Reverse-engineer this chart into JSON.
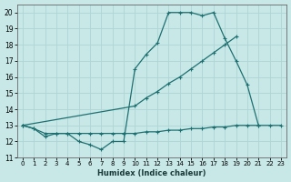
{
  "xlabel": "Humidex (Indice chaleur)",
  "xlim": [
    -0.5,
    23.5
  ],
  "ylim": [
    11,
    20.5
  ],
  "yticks": [
    11,
    12,
    13,
    14,
    15,
    16,
    17,
    18,
    19,
    20
  ],
  "xticks": [
    0,
    1,
    2,
    3,
    4,
    5,
    6,
    7,
    8,
    9,
    10,
    11,
    12,
    13,
    14,
    15,
    16,
    17,
    18,
    19,
    20,
    21,
    22,
    23
  ],
  "bg_color": "#c8e8e8",
  "line_color": "#1e7070",
  "grid_color": "#aed4d4",
  "line1_x": [
    0,
    1,
    2,
    3,
    4,
    5,
    6,
    7,
    8,
    9,
    10,
    11,
    12,
    13,
    14,
    15,
    16,
    17,
    18,
    19,
    20,
    21
  ],
  "line1_y": [
    13.0,
    12.8,
    12.3,
    12.5,
    12.5,
    12.0,
    11.8,
    11.5,
    12.0,
    12.0,
    16.5,
    17.4,
    18.1,
    20.0,
    20.0,
    20.0,
    19.8,
    20.0,
    18.4,
    17.0,
    15.5,
    13.0
  ],
  "line2_x": [
    0,
    10,
    11,
    12,
    13,
    14,
    15,
    16,
    17,
    18,
    19
  ],
  "line2_y": [
    13.0,
    14.2,
    14.7,
    15.1,
    15.6,
    16.0,
    16.5,
    17.0,
    17.5,
    18.0,
    18.5
  ],
  "line3_x": [
    0,
    1,
    2,
    3,
    4,
    5,
    6,
    7,
    8,
    9,
    10,
    11,
    12,
    13,
    14,
    15,
    16,
    17,
    18,
    19,
    20,
    21,
    22,
    23
  ],
  "line3_y": [
    13.0,
    12.8,
    12.5,
    12.5,
    12.5,
    12.5,
    12.5,
    12.5,
    12.5,
    12.5,
    12.5,
    12.6,
    12.6,
    12.7,
    12.7,
    12.8,
    12.8,
    12.9,
    12.9,
    13.0,
    13.0,
    13.0,
    13.0,
    13.0
  ]
}
